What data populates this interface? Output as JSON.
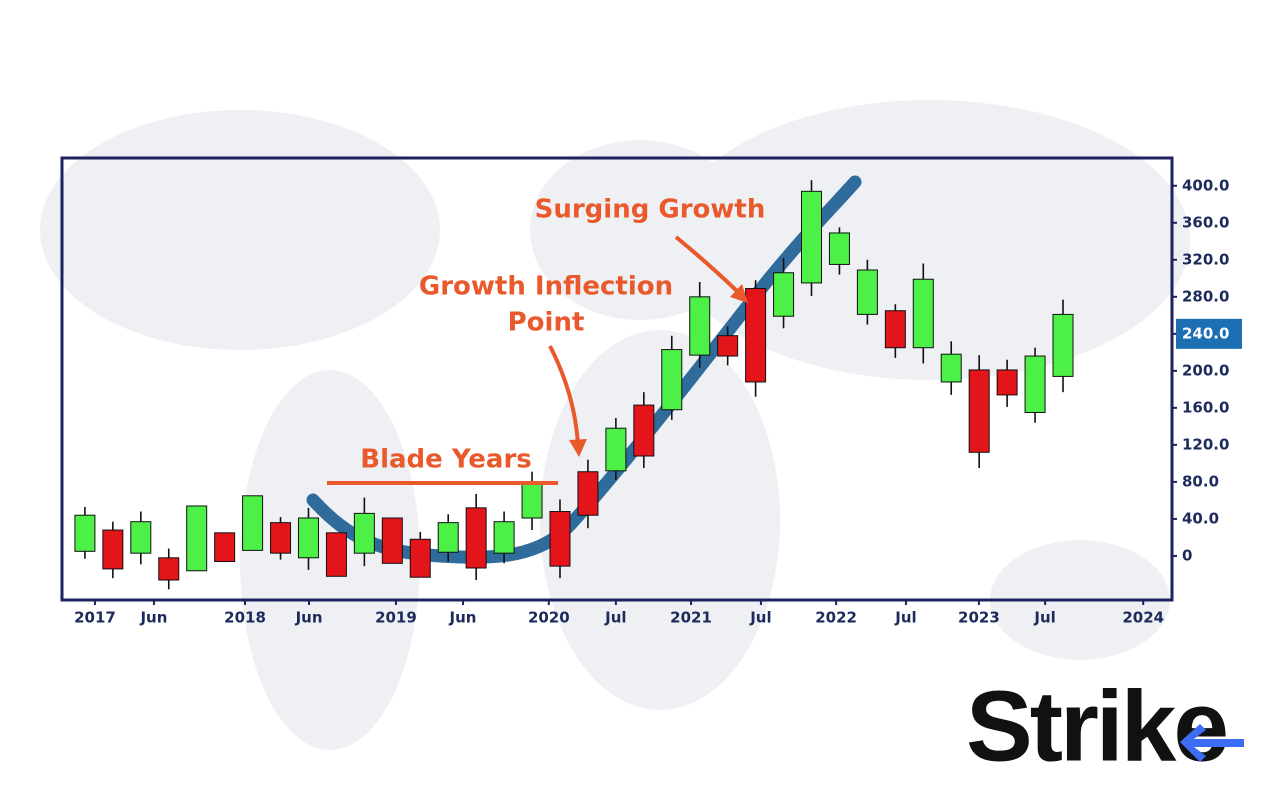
{
  "chart_data": {
    "type": "candlestick",
    "categories": [
      null,
      null,
      null,
      null,
      null,
      null,
      null,
      null,
      null,
      null,
      null,
      null,
      null,
      null,
      null,
      null,
      null,
      null,
      null,
      null,
      null,
      null,
      null,
      null,
      null,
      null,
      null,
      null,
      null,
      null,
      null,
      null,
      null,
      null,
      null,
      null
    ],
    "open": [
      5,
      28,
      3,
      -2,
      -16,
      25,
      6,
      36,
      -2,
      25,
      3,
      41,
      18,
      4,
      52,
      3,
      41,
      48,
      91,
      92,
      163,
      158,
      217,
      238,
      289,
      259,
      295,
      315,
      261,
      265,
      225,
      188,
      201,
      201,
      155,
      194
    ],
    "high": [
      53,
      37,
      48,
      8,
      54,
      25,
      65,
      42,
      52,
      25,
      63,
      41,
      26,
      45,
      67,
      48,
      91,
      61,
      104,
      149,
      177,
      238,
      296,
      248,
      298,
      322,
      406,
      355,
      320,
      272,
      316,
      232,
      217,
      212,
      225,
      277
    ],
    "low": [
      -3,
      -24,
      -9,
      -36,
      -16,
      -6,
      6,
      -4,
      -15,
      -22,
      -11,
      -8,
      -23,
      -6,
      -26,
      -8,
      28,
      -24,
      30,
      82,
      95,
      147,
      203,
      206,
      172,
      246,
      281,
      304,
      250,
      214,
      208,
      174,
      95,
      161,
      144,
      177
    ],
    "close": [
      44,
      -14,
      37,
      -26,
      54,
      -6,
      65,
      3,
      41,
      -22,
      46,
      -8,
      -23,
      36,
      -13,
      37,
      78,
      -11,
      44,
      138,
      108,
      223,
      280,
      216,
      188,
      306,
      394,
      349,
      309,
      225,
      299,
      218,
      112,
      174,
      216,
      261
    ],
    "up_color": "#4cf046",
    "down_color": "#e3151b",
    "ylim": [
      -47.6,
      430
    ],
    "yticks": [
      {
        "value": 400,
        "label": "400.0"
      },
      {
        "value": 360,
        "label": "360.0"
      },
      {
        "value": 320,
        "label": "320.0"
      },
      {
        "value": 280,
        "label": "280.0"
      },
      {
        "value": 240,
        "label": "240.0"
      },
      {
        "value": 200,
        "label": "200.0"
      },
      {
        "value": 160,
        "label": "160.0"
      },
      {
        "value": 120,
        "label": "120.0"
      },
      {
        "value": 80,
        "label": "80.0"
      },
      {
        "value": 40,
        "label": "40.0"
      },
      0
    ],
    "highlight_tick": 240,
    "xlim": [
      -0.82,
      38.9
    ],
    "xticks": [
      {
        "value": 0.36,
        "label": "2017"
      },
      {
        "value": 2.47,
        "label": "Jun"
      },
      {
        "value": 5.73,
        "label": "2018"
      },
      {
        "value": 8.02,
        "label": "Jun"
      },
      {
        "value": 11.13,
        "label": "2019"
      },
      {
        "value": 13.53,
        "label": "Jun"
      },
      {
        "value": 16.6,
        "label": "2020"
      },
      {
        "value": 19.0,
        "label": "Jul"
      },
      {
        "value": 21.69,
        "label": "2021"
      },
      {
        "value": 24.19,
        "label": "Jul"
      },
      {
        "value": 26.88,
        "label": "2022"
      },
      {
        "value": 29.38,
        "label": "Jul"
      },
      {
        "value": 31.99,
        "label": "2023"
      },
      {
        "value": 34.36,
        "label": "Jul"
      },
      {
        "value": 37.87,
        "label": "2024"
      }
    ],
    "annotations": {
      "blade": "Blade Years",
      "inflection": [
        "Growth Inflection",
        "Point"
      ],
      "surge": "Surging Growth"
    }
  },
  "brand": "Strike"
}
